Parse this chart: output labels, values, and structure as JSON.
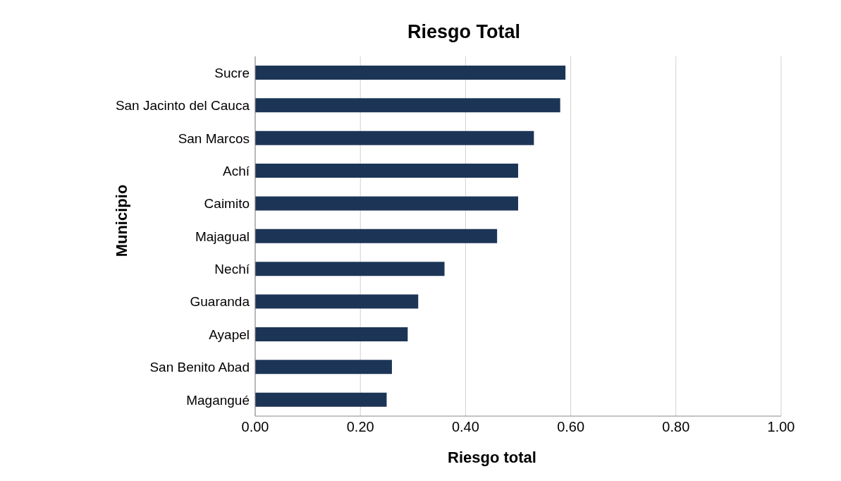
{
  "chart_data": {
    "type": "bar",
    "orientation": "horizontal",
    "title": "Riesgo Total",
    "xlabel": "Riesgo total",
    "ylabel": "Municipio",
    "categories": [
      "Sucre",
      "San Jacinto del Cauca",
      "San Marcos",
      "Achí",
      "Caimito",
      "Majagual",
      "Nechí",
      "Guaranda",
      "Ayapel",
      "San Benito Abad",
      "Magangué"
    ],
    "values": [
      0.59,
      0.58,
      0.53,
      0.5,
      0.5,
      0.46,
      0.36,
      0.31,
      0.29,
      0.26,
      0.25
    ],
    "color": "#1c3557",
    "xlim": [
      0,
      1
    ],
    "xticks": [
      {
        "value": 0,
        "label": "0.00"
      },
      {
        "value": 0.2,
        "label": "0.20"
      },
      {
        "value": 0.4,
        "label": "0.40"
      },
      {
        "value": 0.6,
        "label": "0.60"
      },
      {
        "value": 0.8,
        "label": "0.80"
      },
      {
        "value": 1,
        "label": "1.00"
      }
    ],
    "grid": "x",
    "legend": false
  }
}
